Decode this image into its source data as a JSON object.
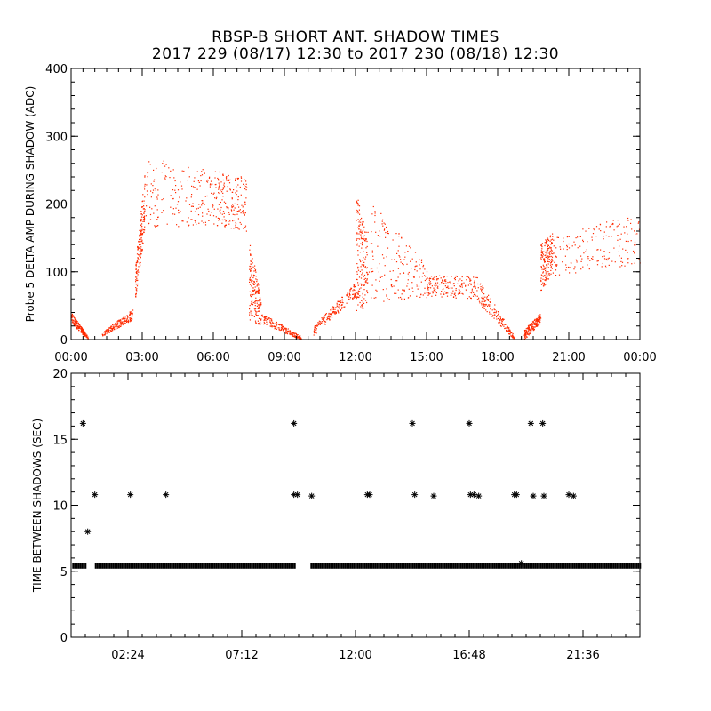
{
  "title_line1": "RBSP-B SHORT ANT. SHADOW TIMES",
  "title_line2": "2017 229 (08/17) 12:30 to 2017 230 (08/18) 12:30",
  "colors": {
    "top_series": "#ff2a00",
    "bottom_series": "#000000"
  },
  "chart_data": [
    {
      "type": "scatter",
      "ylabel": "Probe 5 DELTA AMP DURING SHADOW (ADC)",
      "xlim": [
        0,
        24
      ],
      "ylim": [
        0,
        400
      ],
      "x_ticks": [
        0,
        3,
        6,
        9,
        12,
        15,
        18,
        21,
        24
      ],
      "x_tick_labels": [
        "00:00",
        "03:00",
        "06:00",
        "09:00",
        "12:00",
        "15:00",
        "18:00",
        "21:00",
        "00:00"
      ],
      "y_ticks": [
        0,
        100,
        200,
        300,
        400
      ],
      "y_tick_labels": [
        "0",
        "100",
        "200",
        "300",
        "400"
      ],
      "grid": false,
      "series": [
        {
          "color": "#ff2a00",
          "segments": [
            {
              "x": [
                0.0,
                0.7
              ],
              "low": [
                25,
                0
              ],
              "high": [
                40,
                5
              ]
            },
            {
              "x": [
                1.3,
                2.6
              ],
              "low": [
                5,
                30
              ],
              "high": [
                12,
                45
              ]
            },
            {
              "x": [
                2.7,
                3.1
              ],
              "low": [
                60,
                160
              ],
              "high": [
                110,
                250
              ]
            },
            {
              "x": [
                3.1,
                6.0
              ],
              "low": [
                165,
                170
              ],
              "high": [
                270,
                250
              ]
            },
            {
              "x": [
                6.0,
                7.4
              ],
              "low": [
                170,
                160
              ],
              "high": [
                250,
                240
              ]
            },
            {
              "x": [
                7.5,
                8.0
              ],
              "low": [
                30,
                20
              ],
              "high": [
                150,
                60
              ]
            },
            {
              "x": [
                8.0,
                9.7
              ],
              "low": [
                25,
                0
              ],
              "high": [
                40,
                5
              ]
            },
            {
              "x": [
                10.2,
                12.0
              ],
              "low": [
                5,
                65
              ],
              "high": [
                20,
                85
              ]
            },
            {
              "x": [
                12.0,
                12.5
              ],
              "low": [
                40,
                50
              ],
              "high": [
                220,
                150
              ]
            },
            {
              "x": [
                12.5,
                15.0
              ],
              "low": [
                55,
                60
              ],
              "high": [
                210,
                110
              ]
            },
            {
              "x": [
                15.0,
                17.0
              ],
              "low": [
                65,
                60
              ],
              "high": [
                95,
                95
              ]
            },
            {
              "x": [
                17.0,
                18.7
              ],
              "low": [
                60,
                0
              ],
              "high": [
                100,
                5
              ]
            },
            {
              "x": [
                19.1,
                19.8
              ],
              "low": [
                0,
                25
              ],
              "high": [
                15,
                40
              ]
            },
            {
              "x": [
                19.8,
                20.3
              ],
              "low": [
                70,
                100
              ],
              "high": [
                140,
                160
              ]
            },
            {
              "x": [
                20.3,
                24.0
              ],
              "low": [
                95,
                110
              ],
              "high": [
                150,
                190
              ]
            }
          ]
        }
      ]
    },
    {
      "type": "scatter",
      "ylabel": "TIME BETWEEN SHADOWS (SEC)",
      "xlim": [
        0,
        24
      ],
      "ylim": [
        0,
        20
      ],
      "x_ticks": [
        2.4,
        7.2,
        12.0,
        16.8,
        21.6
      ],
      "x_tick_labels": [
        "02:24",
        "07:12",
        "12:00",
        "16:48",
        "21:36"
      ],
      "y_ticks": [
        0,
        5,
        10,
        15,
        20
      ],
      "y_tick_labels": [
        "0",
        "5",
        "10",
        "15",
        "20"
      ],
      "grid": false,
      "series": [
        {
          "color": "#000000",
          "marker": "asterisk",
          "baseline_value": 5.4,
          "baseline_ranges": [
            [
              0.05,
              0.6
            ],
            [
              1.0,
              9.4
            ],
            [
              10.1,
              24.0
            ]
          ],
          "points": [
            [
              0.5,
              16.2
            ],
            [
              0.7,
              8.0
            ],
            [
              1.0,
              10.8
            ],
            [
              2.5,
              10.8
            ],
            [
              4.0,
              10.8
            ],
            [
              9.4,
              16.2
            ],
            [
              9.4,
              10.8
            ],
            [
              9.55,
              10.8
            ],
            [
              10.15,
              10.7
            ],
            [
              12.5,
              10.8
            ],
            [
              12.6,
              10.8
            ],
            [
              14.4,
              16.2
            ],
            [
              14.5,
              10.8
            ],
            [
              15.3,
              10.7
            ],
            [
              16.8,
              16.2
            ],
            [
              16.85,
              10.8
            ],
            [
              17.0,
              10.8
            ],
            [
              17.2,
              10.7
            ],
            [
              18.7,
              10.8
            ],
            [
              18.8,
              10.8
            ],
            [
              19.0,
              5.6
            ],
            [
              19.4,
              16.2
            ],
            [
              19.5,
              10.7
            ],
            [
              19.9,
              16.2
            ],
            [
              19.95,
              10.7
            ],
            [
              21.0,
              10.8
            ],
            [
              21.2,
              10.7
            ]
          ]
        }
      ]
    }
  ]
}
